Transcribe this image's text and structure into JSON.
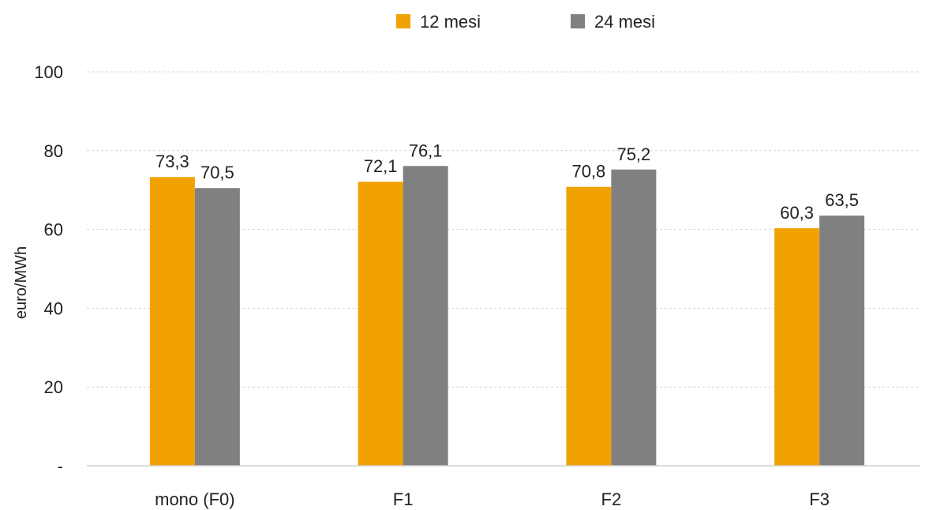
{
  "chart_data": {
    "type": "bar",
    "title": "",
    "xlabel": "",
    "ylabel": "euro/MWh",
    "ylim": [
      0,
      100
    ],
    "y_ticks": [
      {
        "value": 0,
        "label": "-"
      },
      {
        "value": 20,
        "label": "20"
      },
      {
        "value": 40,
        "label": "40"
      },
      {
        "value": 60,
        "label": "60"
      },
      {
        "value": 80,
        "label": "80"
      },
      {
        "value": 100,
        "label": "100"
      }
    ],
    "categories": [
      "mono (F0)",
      "F1",
      "F2",
      "F3"
    ],
    "series": [
      {
        "name": "12 mesi",
        "color": "#f2a200",
        "values": [
          73.3,
          72.1,
          70.8,
          60.3
        ],
        "labels": [
          "73,3",
          "72,1",
          "70,8",
          "60,3"
        ]
      },
      {
        "name": "24 mesi",
        "color": "#808080",
        "values": [
          70.5,
          76.1,
          75.2,
          63.5
        ],
        "labels": [
          "70,5",
          "76,1",
          "75,2",
          "63,5"
        ]
      }
    ],
    "grid": true,
    "legend_position": "top-center"
  }
}
